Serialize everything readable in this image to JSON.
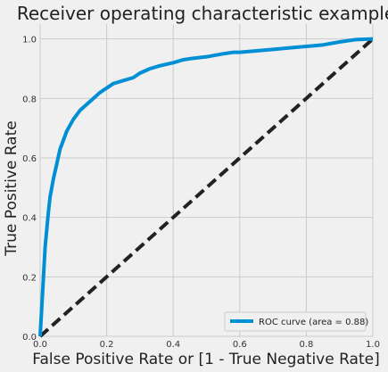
{
  "chart_data": {
    "type": "line",
    "title": "Receiver operating characteristic example",
    "xlabel": "False Positive Rate or [1 - True Negative Rate]",
    "ylabel": "True Positive Rate",
    "xlim": [
      0.0,
      1.0
    ],
    "ylim": [
      0.0,
      1.05
    ],
    "xticks": [
      0.0,
      0.2,
      0.4,
      0.6,
      0.8,
      1.0
    ],
    "xtick_labels": [
      "0.0",
      "0.2",
      "0.4",
      "0.6",
      "0.8",
      "1.0"
    ],
    "yticks": [
      0.0,
      0.2,
      0.4,
      0.6,
      0.8,
      1.0
    ],
    "ytick_labels": [
      "0.0",
      "0.2",
      "0.4",
      "0.6",
      "0.8",
      "1.0"
    ],
    "grid": true,
    "legend_position": "lower-right",
    "series": [
      {
        "name": "ROC curve (area = 0.88)",
        "color": "#008fd5",
        "style": "solid",
        "x": [
          0.0,
          0.005,
          0.01,
          0.015,
          0.02,
          0.025,
          0.03,
          0.04,
          0.05,
          0.06,
          0.07,
          0.08,
          0.09,
          0.1,
          0.12,
          0.14,
          0.16,
          0.18,
          0.2,
          0.22,
          0.25,
          0.28,
          0.3,
          0.33,
          0.36,
          0.4,
          0.43,
          0.46,
          0.5,
          0.55,
          0.58,
          0.6,
          0.65,
          0.7,
          0.75,
          0.8,
          0.85,
          0.9,
          0.95,
          1.0
        ],
        "y": [
          0.0,
          0.1,
          0.2,
          0.3,
          0.36,
          0.42,
          0.47,
          0.53,
          0.58,
          0.63,
          0.66,
          0.69,
          0.71,
          0.73,
          0.76,
          0.78,
          0.8,
          0.82,
          0.835,
          0.85,
          0.86,
          0.87,
          0.885,
          0.9,
          0.91,
          0.92,
          0.93,
          0.935,
          0.94,
          0.95,
          0.955,
          0.955,
          0.96,
          0.965,
          0.97,
          0.975,
          0.98,
          0.99,
          0.998,
          1.0
        ]
      },
      {
        "name": "",
        "color": "#222222",
        "style": "dashed",
        "x": [
          0.0,
          1.0
        ],
        "y": [
          0.0,
          1.0
        ]
      }
    ]
  }
}
